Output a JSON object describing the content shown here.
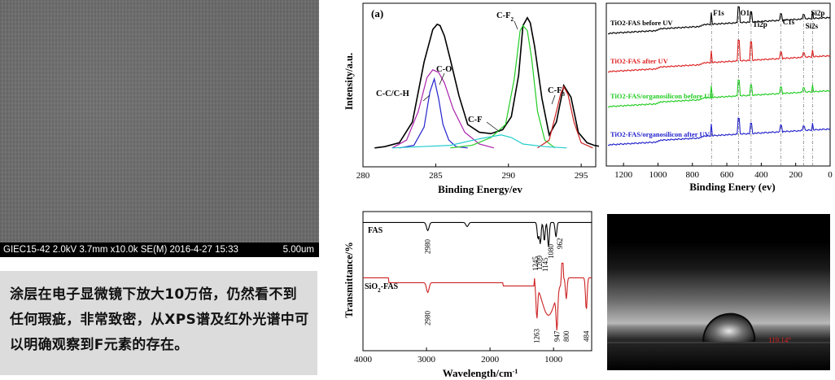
{
  "sem": {
    "info": "GIEC15-42 2.0kV 3.7mm x10.0k SE(M) 2016-4-27 15:33",
    "scale": "5.00um"
  },
  "caption": "涂层在电子显微镜下放大10万倍，仍然看不到任何瑕疵，非常致密，从XPS谱及红外光谱中可以明确观察到F元素的存在。",
  "contact_angle": {
    "value": "119.14°"
  },
  "chart_data": [
    {
      "type": "line",
      "panel_label": "(a)",
      "xlabel": "Binding Energy/ev",
      "ylabel": "Intensity/a.u.",
      "xlim": [
        280,
        296
      ],
      "x_reversed": false,
      "xticks": [
        280,
        285,
        290,
        295
      ],
      "ylim": [
        0,
        100
      ],
      "series": [
        {
          "color": "#000000",
          "x": [
            280.8,
            281.5,
            282.5,
            283.4,
            284.2,
            284.8,
            285.1,
            285.3,
            285.6,
            286.0,
            286.6,
            287.2,
            288.0,
            288.8,
            289.6,
            290.2,
            290.7,
            291.0,
            291.3,
            291.5,
            291.8,
            292.3,
            292.8,
            293.3,
            293.8,
            294.3,
            294.8,
            295.4,
            295.9,
            296.4
          ],
          "y": [
            2,
            3,
            6,
            22,
            68,
            93,
            97,
            96,
            88,
            70,
            42,
            20,
            14,
            13,
            16,
            26,
            58,
            96,
            102,
            98,
            80,
            40,
            12,
            22,
            50,
            41,
            14,
            6,
            4,
            3
          ]
        },
        {
          "color": "#2222cc",
          "x": [
            282.5,
            283.5,
            284.2,
            284.6,
            284.9,
            285.2,
            285.5,
            285.9,
            286.4,
            287.2
          ],
          "y": [
            2,
            4,
            18,
            45,
            55,
            40,
            20,
            8,
            3,
            2
          ]
        },
        {
          "color": "#aa22aa",
          "x": [
            282.0,
            283.0,
            283.8,
            284.4,
            284.8,
            285.2,
            285.6,
            286.2,
            287.0,
            288.0,
            289.0
          ],
          "y": [
            2,
            8,
            30,
            56,
            62,
            60,
            52,
            32,
            14,
            5,
            2
          ]
        },
        {
          "color": "#22cc22",
          "x": [
            286.0,
            287.5,
            288.8,
            289.8,
            290.4,
            290.8,
            291.0,
            291.3,
            291.6,
            292.0,
            292.5,
            293.2
          ],
          "y": [
            2,
            4,
            10,
            20,
            55,
            92,
            96,
            92,
            70,
            30,
            8,
            2
          ]
        },
        {
          "color": "#cc2222",
          "x": [
            292.0,
            292.8,
            293.3,
            293.6,
            293.8,
            294.1,
            294.5,
            295.0,
            295.8
          ],
          "y": [
            2,
            8,
            30,
            44,
            49,
            43,
            22,
            6,
            2
          ]
        },
        {
          "color": "#22cccc",
          "x": [
            282.0,
            284.0,
            286.0,
            288.0,
            289.5,
            290.2,
            291.0,
            292.5,
            294.0
          ],
          "y": [
            2,
            3,
            4,
            9,
            12,
            10,
            5,
            3,
            2
          ]
        }
      ],
      "annotations": [
        "C-C/C-H",
        "C-O",
        "C-F",
        "C-F2",
        "C-F3"
      ]
    },
    {
      "type": "line",
      "xlabel": "Binding Enery (ev)",
      "xlim": [
        1300,
        0
      ],
      "x_reversed": true,
      "xticks": [
        1200,
        1000,
        800,
        600,
        400,
        200,
        0
      ],
      "peak_labels": [
        "F1s",
        "O1s",
        "Ti2p",
        "C1s",
        "Si2s",
        "Si2p"
      ],
      "peak_positions": [
        689,
        531,
        459,
        285,
        153,
        102
      ],
      "series": [
        {
          "name": "TiO2-FAS before UV",
          "color": "#000000"
        },
        {
          "name": "TiO2-FAS after UV",
          "color": "#dd2222"
        },
        {
          "name": "TiO2-FAS/organosilicon before UV",
          "color": "#22cc22"
        },
        {
          "name": "TiO2-FAS/organosilicon after UV",
          "color": "#2222cc"
        }
      ]
    },
    {
      "type": "line",
      "xlabel": "Wavelength/cm",
      "xlabel_sup": "-1",
      "ylabel": "Transmittance/%",
      "xlim": [
        4000,
        400
      ],
      "x_reversed": true,
      "xticks": [
        4000,
        3000,
        2000,
        1000
      ],
      "series": [
        {
          "name": "FAS",
          "color": "#000000",
          "peaks": [
            2980,
            1245,
            1209,
            1145,
            1080,
            962
          ]
        },
        {
          "name": "SiO2-FAS",
          "color": "#cc2222",
          "peaks": [
            2980,
            1263,
            947,
            800,
            484
          ]
        }
      ]
    }
  ]
}
